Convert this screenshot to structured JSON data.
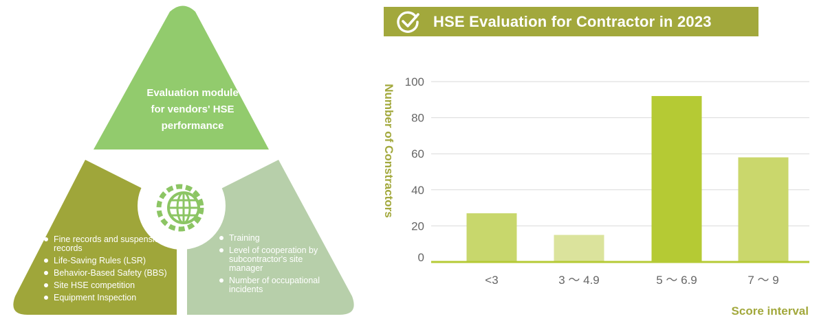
{
  "diagram": {
    "center_label": "Evaluation module for vendors' HSE performance",
    "center_label_lines": [
      "Evaluation module",
      "for vendors' HSE",
      "performance"
    ],
    "center_icon": "gear-globe-icon",
    "left_items": [
      "Fine records and suspension records",
      "Life-Saving Rules (LSR)",
      "Behavior-Based Safety (BBS)",
      "Site HSE competition",
      "Equipment Inspection"
    ],
    "right_items": [
      "Training",
      "Level of cooperation by subcontractor's site manager",
      "Number of occupational incidents"
    ],
    "colors": {
      "top": "#92cb6d",
      "left": "#9fa63a",
      "right": "#b7cfaa",
      "icon": "#8cc564"
    }
  },
  "chart_data": {
    "type": "bar",
    "title": "HSE Evaluation for Contractor in 2023",
    "title_icon": "check-circle-icon",
    "categories": [
      "<3",
      "3 ～ 4.9",
      "5 ～ 6.9",
      "7 ～ 9"
    ],
    "values": [
      27,
      15,
      92,
      58
    ],
    "xlabel": "Score interval",
    "ylabel": "Number of Constractors",
    "ylim": [
      0,
      100
    ],
    "yticks": [
      0,
      20,
      40,
      60,
      80,
      100
    ],
    "grid": true,
    "bar_colors": [
      "#c8d76c",
      "#dbe39c",
      "#b5ca34",
      "#cad76c"
    ],
    "colors": {
      "title_bg": "#a2a83c",
      "axis_text": "#a2a83c",
      "tick_text": "#666666",
      "baseline": "#b5ca34",
      "grid": "#d9d9d9"
    }
  }
}
